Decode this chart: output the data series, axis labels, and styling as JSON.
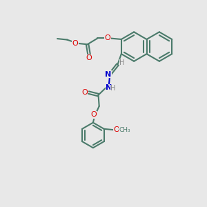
{
  "bg_color": "#e8e8e8",
  "bond_color": "#4a7a6a",
  "bond_width": 1.5,
  "atom_colors": {
    "O": "#dd0000",
    "N": "#0000cc",
    "C": "#4a7a6a",
    "H": "#888888"
  },
  "figsize": [
    3.0,
    3.0
  ],
  "dpi": 100
}
